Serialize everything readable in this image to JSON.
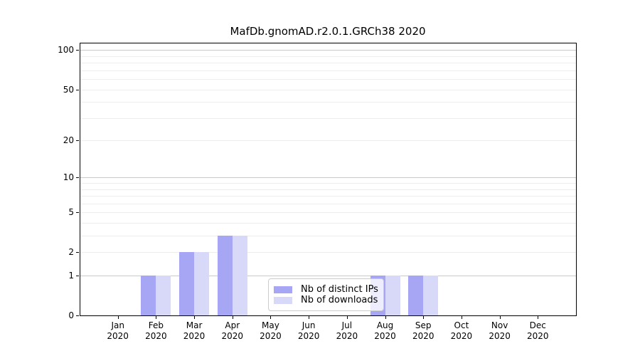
{
  "figure": {
    "title": "MafDb.gnomAD.r2.0.1.GRCh38 2020"
  },
  "chart_data": {
    "type": "bar",
    "title": "MafDb.gnomAD.r2.0.1.GRCh38 2020",
    "categories": [
      "Jan",
      "Feb",
      "Mar",
      "Apr",
      "May",
      "Jun",
      "Jul",
      "Aug",
      "Sep",
      "Oct",
      "Nov",
      "Dec"
    ],
    "category_sublabel": "2020",
    "series": [
      {
        "name": "Nb of distinct IPs",
        "color": "#a6a6f4",
        "values": [
          0,
          1,
          2,
          3,
          0,
          0,
          0,
          1,
          1,
          0,
          0,
          0
        ]
      },
      {
        "name": "Nb of downloads",
        "color": "#d8d8f8",
        "values": [
          0,
          1,
          2,
          3,
          0,
          0,
          0,
          1,
          1,
          0,
          0,
          0
        ]
      }
    ],
    "yscale": "log1p",
    "ylim": [
      0,
      113
    ],
    "yticks_labeled": [
      0,
      1,
      2,
      5,
      10,
      20,
      50,
      100
    ],
    "ytick_labels": [
      "0",
      "1",
      "2",
      "5",
      "10",
      "20",
      "50",
      "100"
    ],
    "yticks_major_grid": [
      1,
      10,
      100
    ],
    "yticks_minor_grid": [
      2,
      3,
      4,
      5,
      6,
      7,
      8,
      9,
      20,
      30,
      40,
      50,
      60,
      70,
      80,
      90
    ],
    "grid": "horizontal",
    "legend_position": "inside lower center-left",
    "colors": {
      "grid_major": "#c9c9c9",
      "grid_minor": "#ededed",
      "spine": "#000000",
      "background": "#ffffff"
    }
  }
}
